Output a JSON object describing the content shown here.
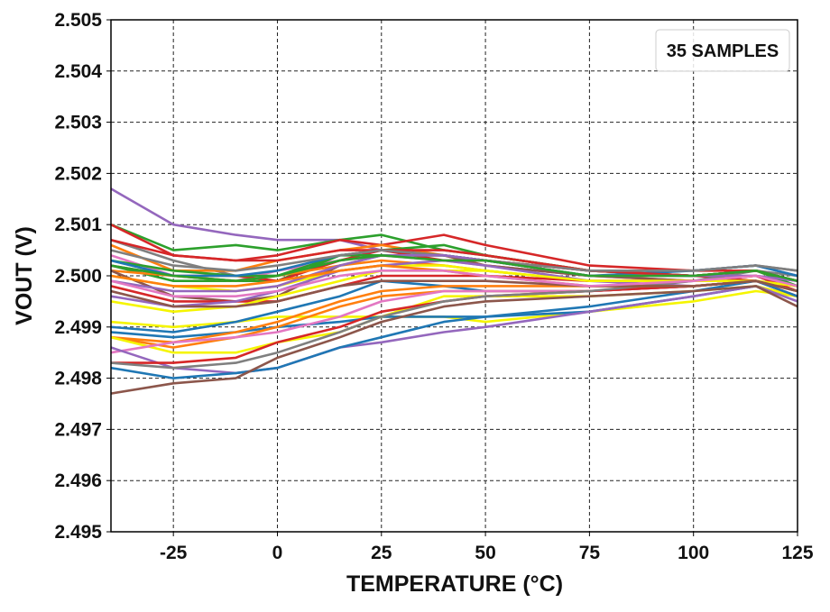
{
  "chart_data": {
    "type": "line",
    "title": "",
    "xlabel": "TEMPERATURE (°C)",
    "ylabel": "VOUT (V)",
    "xlim": [
      -40,
      125
    ],
    "ylim": [
      2.495,
      2.505
    ],
    "xticks": [
      -25,
      0,
      25,
      50,
      75,
      100,
      125
    ],
    "xtick_labels": [
      "-25",
      "0",
      "25",
      "50",
      "75",
      "100",
      "125"
    ],
    "yticks": [
      2.495,
      2.496,
      2.497,
      2.498,
      2.499,
      2.5,
      2.501,
      2.502,
      2.503,
      2.504,
      2.505
    ],
    "ytick_labels": [
      "2.495",
      "2.496",
      "2.497",
      "2.498",
      "2.499",
      "2.500",
      "2.501",
      "2.502",
      "2.503",
      "2.504",
      "2.505"
    ],
    "grid": true,
    "grid_style": "dashed",
    "legend": {
      "text": "35 SAMPLES",
      "placement": "top-right"
    },
    "colors": [
      "#9467bd",
      "#2ca02c",
      "#d62728",
      "#7f7f7f",
      "#ff7f0e",
      "#e377c2",
      "#2ca02c",
      "#d62728",
      "#ff7f0e",
      "#8c564b",
      "#f5f500",
      "#d62728",
      "#9467bd",
      "#f5f500",
      "#1f77b4",
      "#1f77b4",
      "#ff7f0e",
      "#ff7f0e",
      "#f5f500",
      "#e377c2",
      "#9467bd",
      "#d62728",
      "#7f7f7f",
      "#1f77b4",
      "#8c564b",
      "#2ca02c",
      "#1f77b4",
      "#d62728",
      "#7f7f7f",
      "#9467bd",
      "#f5f500",
      "#ff7f0e",
      "#8c564b",
      "#e377c2",
      "#2ca02c"
    ],
    "x": [
      -40,
      -25,
      -10,
      0,
      15,
      25,
      40,
      50,
      75,
      100,
      115,
      125
    ],
    "series": [
      {
        "values": [
          2.5017,
          2.501,
          2.5008,
          2.5007,
          2.5007,
          2.5005,
          2.5004,
          2.5003,
          2.5001,
          2.5001,
          2.5002,
          2.5
        ]
      },
      {
        "values": [
          2.501,
          2.5005,
          2.5006,
          2.5005,
          2.5007,
          2.5008,
          2.5005,
          2.5004,
          2.5001,
          2.5,
          2.5001,
          2.4999
        ]
      },
      {
        "values": [
          2.501,
          2.5004,
          2.5003,
          2.5004,
          2.5007,
          2.5006,
          2.5008,
          2.5006,
          2.5002,
          2.5001,
          2.5001,
          2.4999
        ]
      },
      {
        "values": [
          2.5007,
          2.5003,
          2.5,
          2.5,
          2.5003,
          2.5004,
          2.5004,
          2.5003,
          2.5001,
          2.5001,
          2.5002,
          2.5001
        ]
      },
      {
        "values": [
          2.5006,
          2.5001,
          2.5001,
          2.5003,
          2.5005,
          2.5006,
          2.5004,
          2.5002,
          2.5,
          2.4999,
          2.5,
          2.4998
        ]
      },
      {
        "values": [
          2.5004,
          2.5,
          2.4999,
          2.5001,
          2.5003,
          2.5004,
          2.5003,
          2.5002,
          2.5,
          2.5,
          2.5,
          2.4999
        ]
      },
      {
        "values": [
          2.5002,
          2.4999,
          2.4999,
          2.4999,
          2.5004,
          2.5005,
          2.5006,
          2.5004,
          2.5001,
          2.5,
          2.5001,
          2.4999
        ]
      },
      {
        "values": [
          2.5002,
          2.5,
          2.5,
          2.4999,
          2.5003,
          2.5005,
          2.5003,
          2.5003,
          2.5001,
          2.5,
          2.4999,
          2.4997
        ]
      },
      {
        "values": [
          2.5001,
          2.5,
          2.4999,
          2.5,
          2.5002,
          2.5003,
          2.5002,
          2.5001,
          2.4999,
          2.4999,
          2.5,
          2.4998
        ]
      },
      {
        "values": [
          2.5001,
          2.4996,
          2.4995,
          2.4996,
          2.5002,
          2.5004,
          2.5004,
          2.5002,
          2.5,
          2.4999,
          2.4999,
          2.4998
        ]
      },
      {
        "values": [
          2.5,
          2.4998,
          2.4997,
          2.4998,
          2.5001,
          2.5002,
          2.5002,
          2.5001,
          2.4999,
          2.4999,
          2.5,
          2.4998
        ]
      },
      {
        "values": [
          2.4998,
          2.4995,
          2.4995,
          2.4995,
          2.4998,
          2.5,
          2.5,
          2.5,
          2.4999,
          2.4999,
          2.5,
          2.4997
        ]
      },
      {
        "values": [
          2.4996,
          2.4994,
          2.4995,
          2.4997,
          2.5001,
          2.5002,
          2.5003,
          2.5002,
          2.4999,
          2.4998,
          2.4999,
          2.4996
        ]
      },
      {
        "values": [
          2.4991,
          2.499,
          2.4991,
          2.4992,
          2.4992,
          2.4992,
          2.4992,
          2.4991,
          2.4993,
          2.4995,
          2.4997,
          2.4996
        ]
      },
      {
        "values": [
          2.499,
          2.4989,
          2.4991,
          2.4993,
          2.4996,
          2.4999,
          2.4998,
          2.4997,
          2.4997,
          2.4998,
          2.4999,
          2.4997
        ]
      },
      {
        "values": [
          2.4989,
          2.4988,
          2.4989,
          2.499,
          2.4991,
          2.4992,
          2.4992,
          2.4992,
          2.4993,
          2.4996,
          2.4998,
          2.4996
        ]
      },
      {
        "values": [
          2.4988,
          2.4987,
          2.4989,
          2.4991,
          2.4995,
          2.4997,
          2.4998,
          2.4998,
          2.4998,
          2.4998,
          2.4999,
          2.4997
        ]
      },
      {
        "values": [
          2.4988,
          2.4986,
          2.4988,
          2.499,
          2.4994,
          2.4996,
          2.4997,
          2.4997,
          2.4997,
          2.4998,
          2.4999,
          2.4997
        ]
      },
      {
        "values": [
          2.4988,
          2.4985,
          2.4985,
          2.4987,
          2.4989,
          2.4992,
          2.4996,
          2.4996,
          2.4996,
          2.4997,
          2.4998,
          2.4996
        ]
      },
      {
        "values": [
          2.4985,
          2.4987,
          2.4988,
          2.4989,
          2.4992,
          2.4995,
          2.4997,
          2.4997,
          2.4997,
          2.4998,
          2.4999,
          2.4997
        ]
      },
      {
        "values": [
          2.4986,
          2.4982,
          2.4981,
          2.4982,
          2.4986,
          2.4987,
          2.4989,
          2.499,
          2.4993,
          2.4996,
          2.4998,
          2.4995
        ]
      },
      {
        "values": [
          2.4983,
          2.4983,
          2.4984,
          2.4987,
          2.499,
          2.4993,
          2.4995,
          2.4996,
          2.4997,
          2.4998,
          2.4999,
          2.4996
        ]
      },
      {
        "values": [
          2.4983,
          2.4982,
          2.4983,
          2.4985,
          2.4989,
          2.4992,
          2.4995,
          2.4996,
          2.4997,
          2.4999,
          2.5001,
          2.5
        ]
      },
      {
        "values": [
          2.4982,
          2.498,
          2.4981,
          2.4982,
          2.4986,
          2.4988,
          2.4991,
          2.4992,
          2.4994,
          2.4997,
          2.4999,
          2.4996
        ]
      },
      {
        "values": [
          2.4977,
          2.4979,
          2.498,
          2.4984,
          2.4988,
          2.4991,
          2.4994,
          2.4995,
          2.4996,
          2.4997,
          2.4998,
          2.4994
        ]
      },
      {
        "values": [
          2.5003,
          2.5001,
          2.5,
          2.5,
          2.5004,
          2.5004,
          2.5004,
          2.5003,
          2.5,
          2.5,
          2.5001,
          2.4998
        ]
      },
      {
        "values": [
          2.5003,
          2.5,
          2.5,
          2.5001,
          2.5004,
          2.5005,
          2.5004,
          2.5003,
          2.5,
          2.5001,
          2.5002,
          2.5
        ]
      },
      {
        "values": [
          2.5007,
          2.5004,
          2.5003,
          2.5003,
          2.5005,
          2.5005,
          2.5005,
          2.5004,
          2.5001,
          2.5,
          2.5001,
          2.4999
        ]
      },
      {
        "values": [
          2.5005,
          2.5002,
          2.5001,
          2.5002,
          2.5004,
          2.5005,
          2.5004,
          2.5003,
          2.5001,
          2.5001,
          2.5002,
          2.5001
        ]
      },
      {
        "values": [
          2.4999,
          2.4997,
          2.4997,
          2.4998,
          2.5002,
          2.5004,
          2.5004,
          2.5003,
          2.5,
          2.5,
          2.5,
          2.4999
        ]
      },
      {
        "values": [
          2.4995,
          2.4993,
          2.4994,
          2.4996,
          2.4999,
          2.5001,
          2.5001,
          2.5001,
          2.4999,
          2.4999,
          2.4999,
          2.4998
        ]
      },
      {
        "values": [
          2.5,
          2.4998,
          2.4998,
          2.4999,
          2.5001,
          2.5002,
          2.5001,
          2.5,
          2.4998,
          2.4998,
          2.4999,
          2.4997
        ]
      },
      {
        "values": [
          2.4997,
          2.4994,
          2.4994,
          2.4995,
          2.4998,
          2.4999,
          2.4999,
          2.4999,
          2.4998,
          2.4998,
          2.4999,
          2.4997
        ]
      },
      {
        "values": [
          2.4999,
          2.4996,
          2.4996,
          2.4997,
          2.5,
          2.5001,
          2.5001,
          2.5,
          2.4998,
          2.4999,
          2.5,
          2.4998
        ]
      },
      {
        "values": [
          2.5002,
          2.5,
          2.4999,
          2.5,
          2.5003,
          2.5004,
          2.5003,
          2.5003,
          2.5,
          2.5,
          2.5001,
          2.4999
        ]
      }
    ]
  }
}
